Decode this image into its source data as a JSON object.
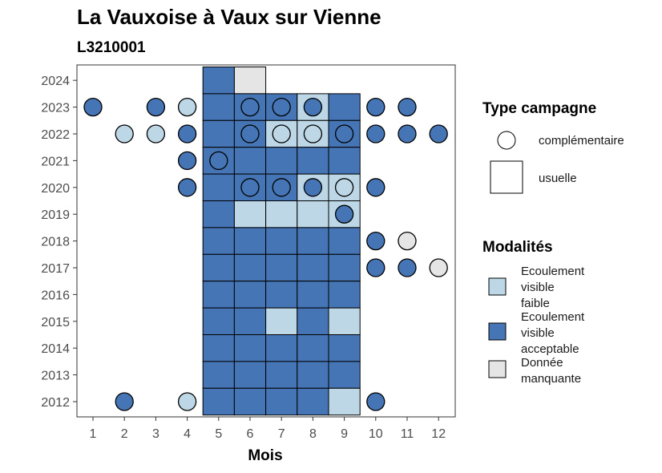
{
  "colors": {
    "Ecoulement visible faible": "#bdd7e7",
    "Ecoulement visible acceptable": "#4575b4",
    "Donnée manquante": "#e5e5e5"
  },
  "chart_data": {
    "type": "heatmap",
    "title": "La Vauxoise à Vaux sur Vienne",
    "subtitle": "L3210001",
    "xlabel": "Mois",
    "ylabel": "",
    "x_ticks": [
      "1",
      "2",
      "3",
      "4",
      "5",
      "6",
      "7",
      "8",
      "9",
      "10",
      "11",
      "12"
    ],
    "y_ticks": [
      "2012",
      "2013",
      "2014",
      "2015",
      "2016",
      "2017",
      "2018",
      "2019",
      "2020",
      "2021",
      "2022",
      "2023",
      "2024"
    ],
    "legend": {
      "type_title": "Type campagne",
      "type_entries": [
        {
          "label": "complémentaire",
          "shape": "circle"
        },
        {
          "label": "usuelle",
          "shape": "square"
        }
      ],
      "modalite_title": "Modalités",
      "modalite_entries": [
        {
          "label_lines": [
            "Ecoulement",
            "visible",
            "faible"
          ],
          "key": "Ecoulement visible faible"
        },
        {
          "label_lines": [
            "Ecoulement",
            "visible",
            "acceptable"
          ],
          "key": "Ecoulement visible acceptable"
        },
        {
          "label_lines": [
            "Donnée",
            "manquante"
          ],
          "key": "Donnée manquante"
        }
      ]
    },
    "tiles": [
      {
        "year": 2024,
        "month": 5,
        "v": "Ecoulement visible acceptable"
      },
      {
        "year": 2024,
        "month": 6,
        "v": "Donnée manquante"
      },
      {
        "year": 2023,
        "month": 5,
        "v": "Ecoulement visible acceptable"
      },
      {
        "year": 2023,
        "month": 6,
        "v": "Ecoulement visible acceptable"
      },
      {
        "year": 2023,
        "month": 7,
        "v": "Ecoulement visible acceptable"
      },
      {
        "year": 2023,
        "month": 8,
        "v": "Ecoulement visible faible"
      },
      {
        "year": 2023,
        "month": 9,
        "v": "Ecoulement visible acceptable"
      },
      {
        "year": 2022,
        "month": 5,
        "v": "Ecoulement visible acceptable"
      },
      {
        "year": 2022,
        "month": 6,
        "v": "Ecoulement visible acceptable"
      },
      {
        "year": 2022,
        "month": 7,
        "v": "Ecoulement visible faible"
      },
      {
        "year": 2022,
        "month": 8,
        "v": "Ecoulement visible faible"
      },
      {
        "year": 2022,
        "month": 9,
        "v": "Ecoulement visible acceptable"
      },
      {
        "year": 2021,
        "month": 5,
        "v": "Ecoulement visible acceptable"
      },
      {
        "year": 2021,
        "month": 6,
        "v": "Ecoulement visible acceptable"
      },
      {
        "year": 2021,
        "month": 7,
        "v": "Ecoulement visible acceptable"
      },
      {
        "year": 2021,
        "month": 8,
        "v": "Ecoulement visible acceptable"
      },
      {
        "year": 2021,
        "month": 9,
        "v": "Ecoulement visible acceptable"
      },
      {
        "year": 2020,
        "month": 5,
        "v": "Ecoulement visible acceptable"
      },
      {
        "year": 2020,
        "month": 6,
        "v": "Ecoulement visible acceptable"
      },
      {
        "year": 2020,
        "month": 7,
        "v": "Ecoulement visible acceptable"
      },
      {
        "year": 2020,
        "month": 8,
        "v": "Ecoulement visible faible"
      },
      {
        "year": 2020,
        "month": 9,
        "v": "Ecoulement visible faible"
      },
      {
        "year": 2019,
        "month": 5,
        "v": "Ecoulement visible acceptable"
      },
      {
        "year": 2019,
        "month": 6,
        "v": "Ecoulement visible faible"
      },
      {
        "year": 2019,
        "month": 7,
        "v": "Ecoulement visible faible"
      },
      {
        "year": 2019,
        "month": 8,
        "v": "Ecoulement visible faible"
      },
      {
        "year": 2019,
        "month": 9,
        "v": "Ecoulement visible faible"
      },
      {
        "year": 2018,
        "month": 5,
        "v": "Ecoulement visible acceptable"
      },
      {
        "year": 2018,
        "month": 6,
        "v": "Ecoulement visible acceptable"
      },
      {
        "year": 2018,
        "month": 7,
        "v": "Ecoulement visible acceptable"
      },
      {
        "year": 2018,
        "month": 8,
        "v": "Ecoulement visible acceptable"
      },
      {
        "year": 2018,
        "month": 9,
        "v": "Ecoulement visible acceptable"
      },
      {
        "year": 2017,
        "month": 5,
        "v": "Ecoulement visible acceptable"
      },
      {
        "year": 2017,
        "month": 6,
        "v": "Ecoulement visible acceptable"
      },
      {
        "year": 2017,
        "month": 7,
        "v": "Ecoulement visible acceptable"
      },
      {
        "year": 2017,
        "month": 8,
        "v": "Ecoulement visible acceptable"
      },
      {
        "year": 2017,
        "month": 9,
        "v": "Ecoulement visible acceptable"
      },
      {
        "year": 2016,
        "month": 5,
        "v": "Ecoulement visible acceptable"
      },
      {
        "year": 2016,
        "month": 6,
        "v": "Ecoulement visible acceptable"
      },
      {
        "year": 2016,
        "month": 7,
        "v": "Ecoulement visible acceptable"
      },
      {
        "year": 2016,
        "month": 8,
        "v": "Ecoulement visible acceptable"
      },
      {
        "year": 2016,
        "month": 9,
        "v": "Ecoulement visible acceptable"
      },
      {
        "year": 2015,
        "month": 5,
        "v": "Ecoulement visible acceptable"
      },
      {
        "year": 2015,
        "month": 6,
        "v": "Ecoulement visible acceptable"
      },
      {
        "year": 2015,
        "month": 7,
        "v": "Ecoulement visible faible"
      },
      {
        "year": 2015,
        "month": 8,
        "v": "Ecoulement visible acceptable"
      },
      {
        "year": 2015,
        "month": 9,
        "v": "Ecoulement visible faible"
      },
      {
        "year": 2014,
        "month": 5,
        "v": "Ecoulement visible acceptable"
      },
      {
        "year": 2014,
        "month": 6,
        "v": "Ecoulement visible acceptable"
      },
      {
        "year": 2014,
        "month": 7,
        "v": "Ecoulement visible acceptable"
      },
      {
        "year": 2014,
        "month": 8,
        "v": "Ecoulement visible acceptable"
      },
      {
        "year": 2014,
        "month": 9,
        "v": "Ecoulement visible acceptable"
      },
      {
        "year": 2013,
        "month": 5,
        "v": "Ecoulement visible acceptable"
      },
      {
        "year": 2013,
        "month": 6,
        "v": "Ecoulement visible acceptable"
      },
      {
        "year": 2013,
        "month": 7,
        "v": "Ecoulement visible acceptable"
      },
      {
        "year": 2013,
        "month": 8,
        "v": "Ecoulement visible acceptable"
      },
      {
        "year": 2013,
        "month": 9,
        "v": "Ecoulement visible acceptable"
      },
      {
        "year": 2012,
        "month": 5,
        "v": "Ecoulement visible acceptable"
      },
      {
        "year": 2012,
        "month": 6,
        "v": "Ecoulement visible acceptable"
      },
      {
        "year": 2012,
        "month": 7,
        "v": "Ecoulement visible acceptable"
      },
      {
        "year": 2012,
        "month": 8,
        "v": "Ecoulement visible acceptable"
      },
      {
        "year": 2012,
        "month": 9,
        "v": "Ecoulement visible faible"
      }
    ],
    "points": [
      {
        "year": 2023,
        "month": 1,
        "v": "Ecoulement visible acceptable"
      },
      {
        "year": 2023,
        "month": 3,
        "v": "Ecoulement visible acceptable"
      },
      {
        "year": 2023,
        "month": 4,
        "v": "Ecoulement visible faible"
      },
      {
        "year": 2023,
        "month": 6,
        "v": "Ecoulement visible acceptable"
      },
      {
        "year": 2023,
        "month": 7,
        "v": "Ecoulement visible acceptable"
      },
      {
        "year": 2023,
        "month": 8,
        "v": "Ecoulement visible acceptable"
      },
      {
        "year": 2023,
        "month": 10,
        "v": "Ecoulement visible acceptable"
      },
      {
        "year": 2023,
        "month": 11,
        "v": "Ecoulement visible acceptable"
      },
      {
        "year": 2022,
        "month": 2,
        "v": "Ecoulement visible faible"
      },
      {
        "year": 2022,
        "month": 3,
        "v": "Ecoulement visible faible"
      },
      {
        "year": 2022,
        "month": 4,
        "v": "Ecoulement visible acceptable"
      },
      {
        "year": 2022,
        "month": 6,
        "v": "Ecoulement visible acceptable"
      },
      {
        "year": 2022,
        "month": 7,
        "v": "Ecoulement visible faible"
      },
      {
        "year": 2022,
        "month": 8,
        "v": "Ecoulement visible faible"
      },
      {
        "year": 2022,
        "month": 9,
        "v": "Ecoulement visible acceptable"
      },
      {
        "year": 2022,
        "month": 10,
        "v": "Ecoulement visible acceptable"
      },
      {
        "year": 2022,
        "month": 11,
        "v": "Ecoulement visible acceptable"
      },
      {
        "year": 2022,
        "month": 12,
        "v": "Ecoulement visible acceptable"
      },
      {
        "year": 2021,
        "month": 4,
        "v": "Ecoulement visible acceptable"
      },
      {
        "year": 2021,
        "month": 5,
        "v": "Ecoulement visible acceptable"
      },
      {
        "year": 2020,
        "month": 4,
        "v": "Ecoulement visible acceptable"
      },
      {
        "year": 2020,
        "month": 6,
        "v": "Ecoulement visible acceptable"
      },
      {
        "year": 2020,
        "month": 7,
        "v": "Ecoulement visible acceptable"
      },
      {
        "year": 2020,
        "month": 8,
        "v": "Ecoulement visible acceptable"
      },
      {
        "year": 2020,
        "month": 9,
        "v": "Ecoulement visible faible"
      },
      {
        "year": 2020,
        "month": 10,
        "v": "Ecoulement visible acceptable"
      },
      {
        "year": 2019,
        "month": 9,
        "v": "Ecoulement visible acceptable"
      },
      {
        "year": 2018,
        "month": 10,
        "v": "Ecoulement visible acceptable"
      },
      {
        "year": 2018,
        "month": 11,
        "v": "Donnée manquante"
      },
      {
        "year": 2017,
        "month": 10,
        "v": "Ecoulement visible acceptable"
      },
      {
        "year": 2017,
        "month": 11,
        "v": "Ecoulement visible acceptable"
      },
      {
        "year": 2017,
        "month": 12,
        "v": "Donnée manquante"
      },
      {
        "year": 2012,
        "month": 2,
        "v": "Ecoulement visible acceptable"
      },
      {
        "year": 2012,
        "month": 4,
        "v": "Ecoulement visible faible"
      },
      {
        "year": 2012,
        "month": 10,
        "v": "Ecoulement visible acceptable"
      }
    ]
  }
}
